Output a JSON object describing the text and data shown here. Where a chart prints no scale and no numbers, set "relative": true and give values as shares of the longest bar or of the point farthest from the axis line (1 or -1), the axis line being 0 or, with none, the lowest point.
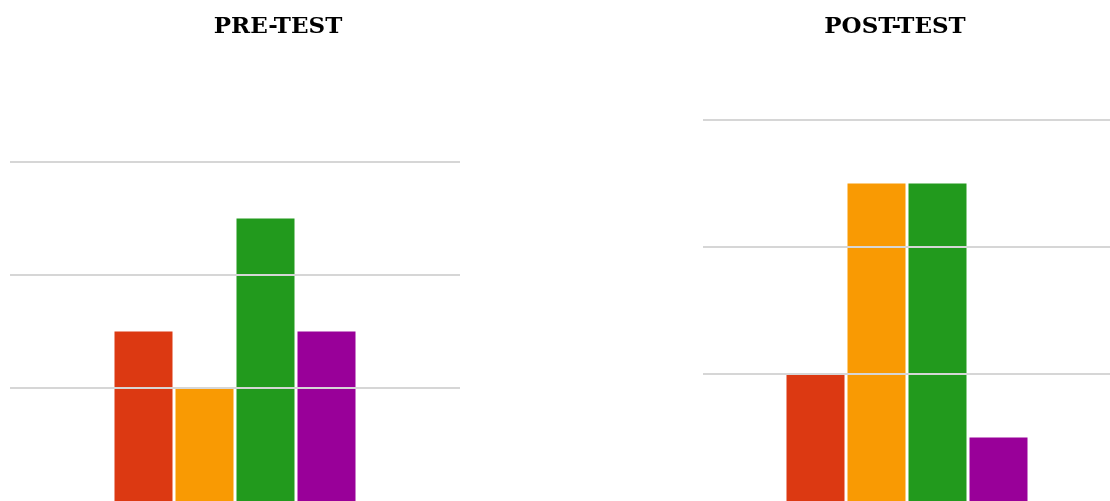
{
  "chart_data": [
    {
      "type": "bar",
      "title": "PRE-TEST",
      "relative": true,
      "categories": [
        null,
        null,
        null,
        null
      ],
      "values": [
        0.6,
        0.4,
        1,
        0.6
      ],
      "colors": [
        "#dc3912",
        "#f99a03",
        "#229a1d",
        "#990099"
      ],
      "ref_lines": [
        {
          "axis": "y",
          "value": 0.4,
          "color": "#d6d6d6"
        },
        {
          "axis": "y",
          "value": 0.8,
          "color": "#d6d6d6"
        },
        {
          "axis": "y",
          "value": 1.2,
          "color": "#d6d6d6"
        }
      ]
    },
    {
      "type": "bar",
      "title": "POST-TEST",
      "relative": true,
      "categories": [
        null,
        null,
        null,
        null
      ],
      "values": [
        0.4,
        1,
        1,
        0.2
      ],
      "colors": [
        "#dc3912",
        "#f99a03",
        "#229a1d",
        "#990099"
      ],
      "ref_lines": [
        {
          "axis": "y",
          "value": 0.4,
          "color": "#d6d6d6"
        },
        {
          "axis": "y",
          "value": 0.8,
          "color": "#d6d6d6"
        },
        {
          "axis": "y",
          "value": 1.2,
          "color": "#d6d6d6"
        }
      ]
    }
  ]
}
